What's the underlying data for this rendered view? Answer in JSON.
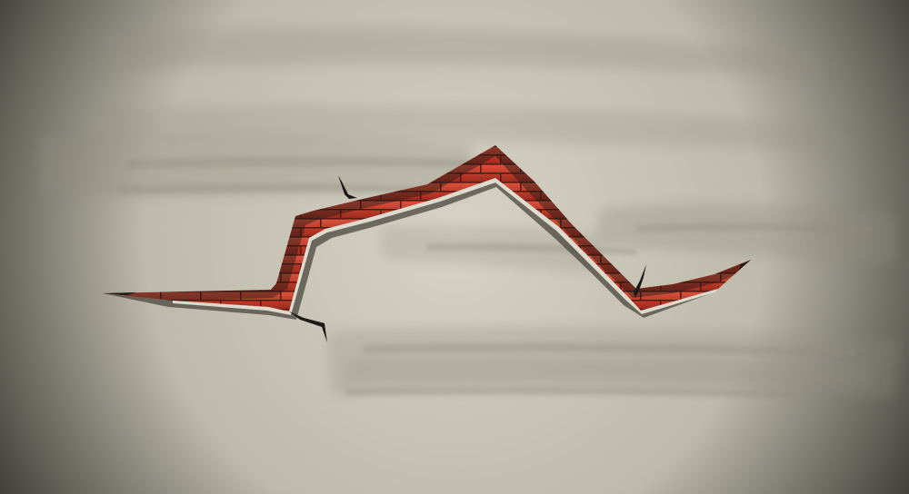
{
  "scene": {
    "subject": "cracked-plaster-wall-with-exposed-brick",
    "colors": {
      "wall_center": "#d6d3c6",
      "wall_edge": "#2a2924",
      "wall_mid": "#bdbaab",
      "brush_stroke": "#8f8c7f",
      "brick_light": "#e0553e",
      "brick_dark": "#9e2a1d",
      "mortar": "#5a1a12",
      "crack_shadow": "#4a473f",
      "crack_edge_light": "#ebe8dc",
      "crack_tip": "#1c1a16"
    }
  }
}
